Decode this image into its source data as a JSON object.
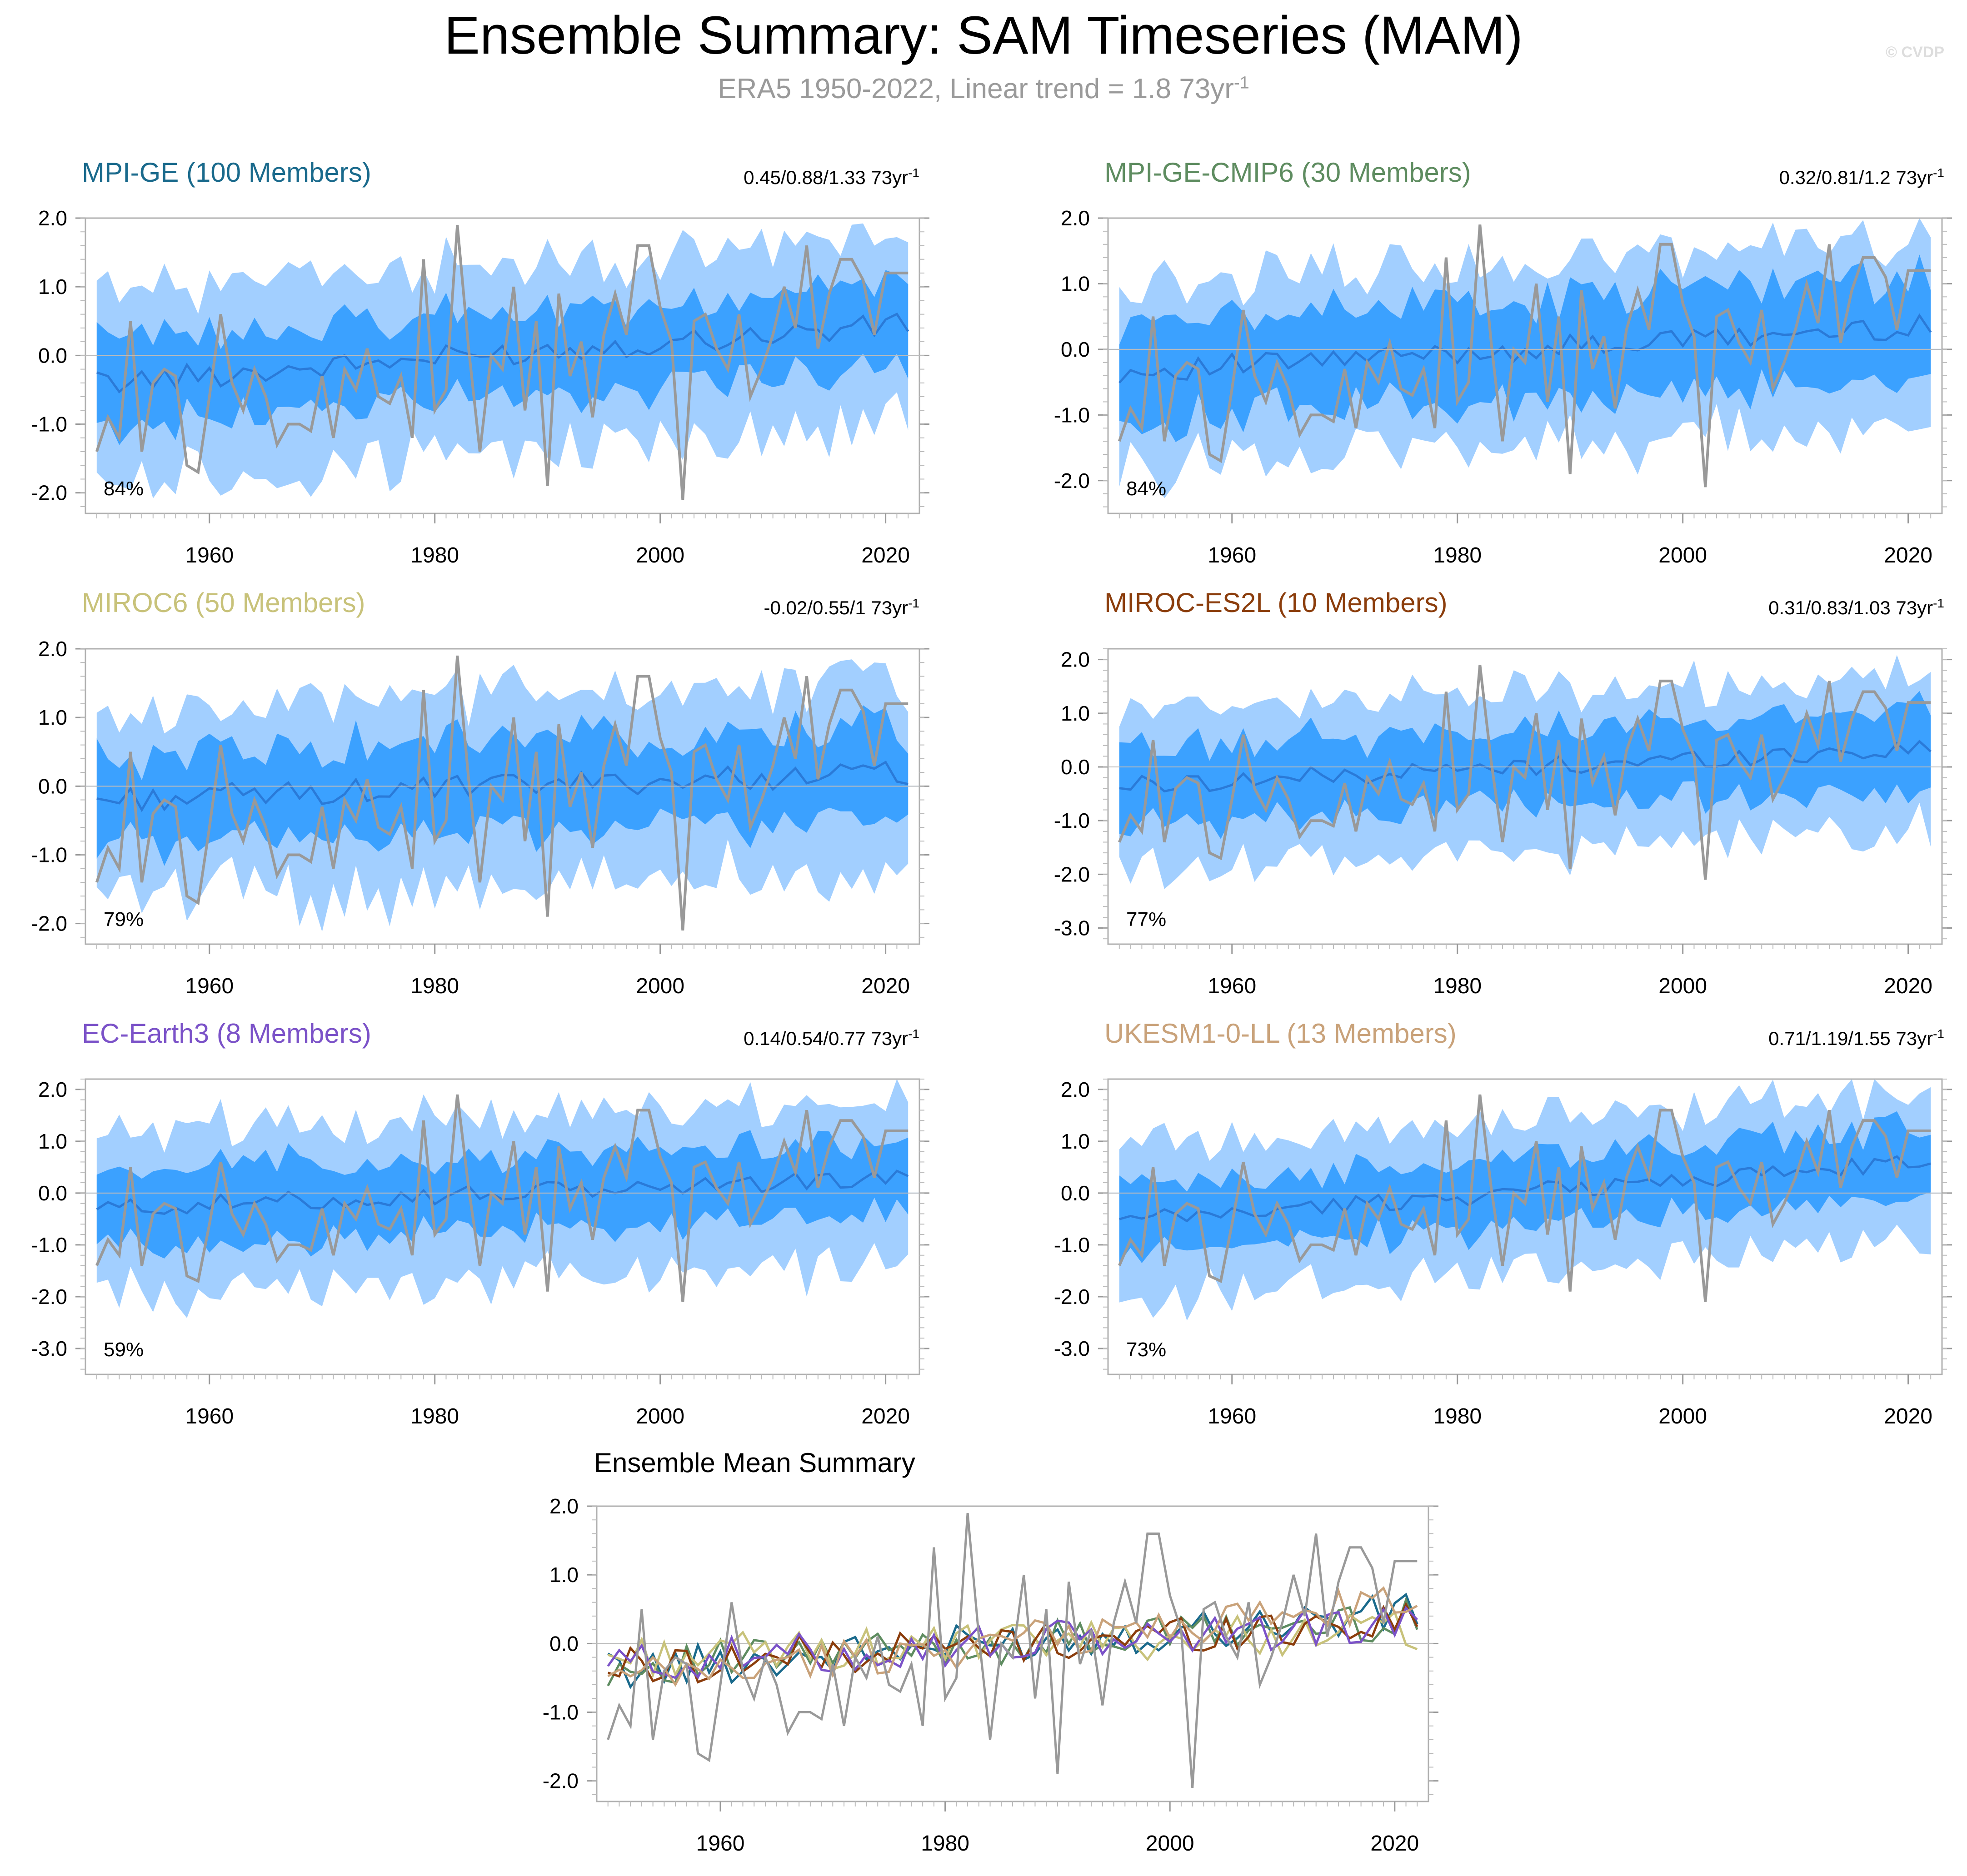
{
  "title": "Ensemble Summary: SAM Timeseries (MAM)",
  "subtitle": {
    "text": "ERA5 1950-2022, Linear trend = 1.8 73yr",
    "superscript": "-1"
  },
  "credit": "© CVDP",
  "colors": {
    "obs": "#999999",
    "mean_line": "#2a7ad8",
    "band_inner": "#3ba1ff",
    "band_outer": "#a2cfff",
    "zero_line": "#bbbbbb"
  },
  "chart_data": [
    {
      "type": "line",
      "id": "mpi-ge",
      "title": "MPI-GE (100 Members)",
      "title_color": "#1a6a8c",
      "trend_label": "0.45/0.88/1.33 73yr",
      "trend_superscript": "-1",
      "percent_label": "84%",
      "x_range": [
        1949,
        2023
      ],
      "ylim": [
        -2.3,
        2.0
      ],
      "yticks": [
        -2.0,
        -1.0,
        0.0,
        1.0,
        2.0
      ],
      "ytick_labels": [
        "-2.0",
        "-1.0",
        "0.0",
        "1.0",
        "2.0"
      ],
      "xticks": [
        1960,
        1980,
        2000,
        2020
      ],
      "ensemble_mean": {
        "start": -0.4,
        "end": 0.45
      },
      "band_inner_halfwidth": 0.6,
      "band_outer_halfwidth": 1.3
    },
    {
      "type": "line",
      "id": "mpi-ge-cmip6",
      "title": "MPI-GE-CMIP6 (30 Members)",
      "title_color": "#5e8c60",
      "trend_label": "0.32/0.81/1.2 73yr",
      "trend_superscript": "-1",
      "percent_label": "84%",
      "x_range": [
        1949,
        2023
      ],
      "ylim": [
        -2.5,
        2.0
      ],
      "yticks": [
        -2.0,
        -1.0,
        0.0,
        1.0,
        2.0
      ],
      "ytick_labels": [
        "-2.0",
        "-1.0",
        "0.0",
        "1.0",
        "2.0"
      ],
      "xticks": [
        1960,
        1980,
        2000,
        2020
      ],
      "ensemble_mean": {
        "start": -0.35,
        "end": 0.35
      },
      "band_inner_halfwidth": 0.75,
      "band_outer_halfwidth": 1.35
    },
    {
      "type": "line",
      "id": "miroc6",
      "title": "MIROC6 (50 Members)",
      "title_color": "#c8c27a",
      "trend_label": "-0.02/0.55/1 73yr",
      "trend_superscript": "-1",
      "percent_label": "79%",
      "x_range": [
        1949,
        2023
      ],
      "ylim": [
        -2.3,
        2.0
      ],
      "yticks": [
        -2.0,
        -1.0,
        0.0,
        1.0,
        2.0
      ],
      "ytick_labels": [
        "-2.0",
        "-1.0",
        "0.0",
        "1.0",
        "2.0"
      ],
      "xticks": [
        1960,
        1980,
        2000,
        2020
      ],
      "ensemble_mean": {
        "start": -0.2,
        "end": 0.2
      },
      "band_inner_halfwidth": 0.65,
      "band_outer_halfwidth": 1.3
    },
    {
      "type": "line",
      "id": "miroc-es2l",
      "title": "MIROC-ES2L (10 Members)",
      "title_color": "#8b3d0c",
      "trend_label": "0.31/0.83/1.03 73yr",
      "trend_superscript": "-1",
      "percent_label": "77%",
      "x_range": [
        1949,
        2023
      ],
      "ylim": [
        -3.3,
        2.2
      ],
      "yticks": [
        -3.0,
        -2.0,
        -1.0,
        0.0,
        1.0,
        2.0
      ],
      "ytick_labels": [
        "-3.0",
        "-2.0",
        "-1.0",
        "0.0",
        "1.0",
        "2.0"
      ],
      "xticks": [
        1960,
        1980,
        2000,
        2020
      ],
      "ensemble_mean": {
        "start": -0.35,
        "end": 0.35
      },
      "band_inner_halfwidth": 0.7,
      "band_outer_halfwidth": 1.4
    },
    {
      "type": "line",
      "id": "ec-earth3",
      "title": "EC-Earth3 (8 Members)",
      "title_color": "#7b52c8",
      "trend_label": "0.14/0.54/0.77 73yr",
      "trend_superscript": "-1",
      "percent_label": "59%",
      "x_range": [
        1949,
        2023
      ],
      "ylim": [
        -3.5,
        2.2
      ],
      "yticks": [
        -3.0,
        -2.0,
        -1.0,
        0.0,
        1.0,
        2.0
      ],
      "ytick_labels": [
        "-3.0",
        "-2.0",
        "-1.0",
        "0.0",
        "1.0",
        "2.0"
      ],
      "xticks": [
        1960,
        1980,
        2000,
        2020
      ],
      "ensemble_mean": {
        "start": -0.3,
        "end": 0.3
      },
      "band_inner_halfwidth": 0.7,
      "band_outer_halfwidth": 1.5
    },
    {
      "type": "line",
      "id": "ukesm1-0-ll",
      "title": "UKESM1-0-LL (13 Members)",
      "title_color": "#c9a27a",
      "trend_label": "0.71/1.19/1.55 73yr",
      "trend_superscript": "-1",
      "percent_label": "73%",
      "x_range": [
        1949,
        2023
      ],
      "ylim": [
        -3.5,
        2.2
      ],
      "yticks": [
        -3.0,
        -2.0,
        -1.0,
        0.0,
        1.0,
        2.0
      ],
      "ytick_labels": [
        "-3.0",
        "-2.0",
        "-1.0",
        "0.0",
        "1.0",
        "2.0"
      ],
      "xticks": [
        1960,
        1980,
        2000,
        2020
      ],
      "ensemble_mean": {
        "start": -0.55,
        "end": 0.6
      },
      "band_inner_halfwidth": 0.65,
      "band_outer_halfwidth": 1.35
    },
    {
      "type": "line",
      "id": "ensemble-mean-summary",
      "title": "Ensemble Mean Summary",
      "x_range": [
        1949,
        2023
      ],
      "ylim": [
        -2.3,
        2.0
      ],
      "yticks": [
        -2.0,
        -1.0,
        0.0,
        1.0,
        2.0
      ],
      "ytick_labels": [
        "-2.0",
        "-1.0",
        "0.0",
        "1.0",
        "2.0"
      ],
      "xticks": [
        1960,
        1980,
        2000,
        2020
      ],
      "series": [
        {
          "name": "MPI-GE",
          "color": "#1a6a8c"
        },
        {
          "name": "MPI-GE-CMIP6",
          "color": "#5e8c60"
        },
        {
          "name": "MIROC6",
          "color": "#c8c27a"
        },
        {
          "name": "MIROC-ES2L",
          "color": "#8b3d0c"
        },
        {
          "name": "EC-Earth3",
          "color": "#7b52c8"
        },
        {
          "name": "UKESM1-0-LL",
          "color": "#c9a27a"
        },
        {
          "name": "ERA5",
          "color": "#999999"
        }
      ]
    }
  ],
  "observations": {
    "name": "ERA5",
    "start_year": 1950,
    "values": [
      -1.4,
      -0.9,
      -1.2,
      0.5,
      -1.4,
      -0.4,
      -0.2,
      -0.3,
      -1.6,
      -1.7,
      -0.6,
      0.6,
      -0.4,
      -0.8,
      -0.2,
      -0.6,
      -1.3,
      -1.0,
      -1.0,
      -1.1,
      -0.3,
      -1.2,
      -0.2,
      -0.5,
      0.1,
      -0.6,
      -0.7,
      -0.3,
      -1.2,
      1.4,
      -0.8,
      -0.5,
      1.9,
      0.1,
      -1.4,
      0.0,
      -0.2,
      1.0,
      -0.8,
      0.5,
      -1.9,
      0.9,
      -0.3,
      0.2,
      -0.9,
      0.3,
      0.9,
      0.3,
      1.6,
      1.6,
      0.7,
      0.2,
      -2.1,
      0.5,
      0.6,
      0.1,
      -0.2,
      0.6,
      -0.6,
      -0.2,
      0.3,
      1.0,
      0.4,
      1.6,
      0.1,
      0.9,
      1.4,
      1.4,
      1.1,
      0.3,
      1.2,
      1.2,
      1.2
    ]
  }
}
